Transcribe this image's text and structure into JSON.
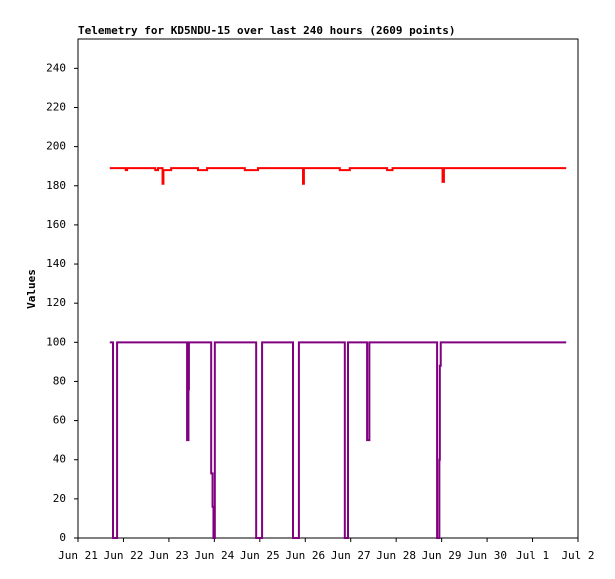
{
  "chart_data": {
    "type": "line",
    "title": "Telemetry for KD5NDU-15 over last 240 hours (2609 points)",
    "y_label": "Values",
    "xlim": [
      0,
      11
    ],
    "xticks": [
      {
        "value": 0,
        "label": "Jun 21"
      },
      {
        "value": 1,
        "label": "Jun 22"
      },
      {
        "value": 2,
        "label": "Jun 23"
      },
      {
        "value": 3,
        "label": "Jun 24"
      },
      {
        "value": 4,
        "label": "Jun 25"
      },
      {
        "value": 5,
        "label": "Jun 26"
      },
      {
        "value": 6,
        "label": "Jun 27"
      },
      {
        "value": 7,
        "label": "Jun 28"
      },
      {
        "value": 8,
        "label": "Jun 29"
      },
      {
        "value": 9,
        "label": "Jun 30"
      },
      {
        "value": 10,
        "label": "Jul 1"
      },
      {
        "value": 11,
        "label": "Jul 2"
      }
    ],
    "ylim": [
      0,
      255
    ],
    "yticks": [
      0,
      20,
      40,
      60,
      80,
      100,
      120,
      140,
      160,
      180,
      200,
      220,
      240
    ],
    "series": [
      {
        "color": "#ff0000",
        "x": [
          0.7,
          1.05,
          1.05,
          1.08,
          1.08,
          1.7,
          1.7,
          1.76,
          1.76,
          1.86,
          1.86,
          1.88,
          1.88,
          2.05,
          2.05,
          2.64,
          2.64,
          2.84,
          2.84,
          3.67,
          3.67,
          3.96,
          3.96,
          4.95,
          4.95,
          4.97,
          4.97,
          5.76,
          5.76,
          5.98,
          5.98,
          6.8,
          6.8,
          6.92,
          6.92,
          8.02,
          8.02,
          8.05,
          8.05,
          10.74
        ],
        "values": [
          189,
          189,
          188,
          188,
          189,
          189,
          188,
          188,
          189,
          189,
          181,
          181,
          188,
          188,
          189,
          189,
          188,
          188,
          189,
          189,
          188,
          188,
          189,
          189,
          181,
          181,
          189,
          189,
          188,
          188,
          189,
          189,
          188,
          188,
          189,
          189,
          182,
          182,
          189,
          189
        ]
      },
      {
        "color": "#800080",
        "x": [
          0.7,
          0.77,
          0.77,
          0.86,
          0.86,
          2.4,
          2.4,
          2.43,
          2.43,
          2.44,
          2.44,
          2.93,
          2.93,
          2.96,
          2.96,
          2.98,
          2.98,
          3.01,
          3.01,
          3.92,
          3.92,
          4.05,
          4.05,
          4.73,
          4.73,
          4.86,
          4.86,
          5.87,
          5.87,
          5.94,
          5.94,
          6.36,
          6.36,
          6.41,
          6.41,
          7.9,
          7.9,
          7.95,
          7.95,
          7.96,
          7.96,
          7.98,
          7.98,
          10.74
        ],
        "values": [
          100,
          100,
          0,
          0,
          100,
          100,
          50,
          50,
          76,
          76,
          100,
          100,
          33,
          33,
          16,
          16,
          0,
          0,
          100,
          100,
          0,
          0,
          100,
          100,
          0,
          0,
          100,
          100,
          0,
          0,
          100,
          100,
          50,
          50,
          100,
          100,
          0,
          0,
          40,
          40,
          88,
          88,
          100,
          100
        ]
      }
    ]
  }
}
